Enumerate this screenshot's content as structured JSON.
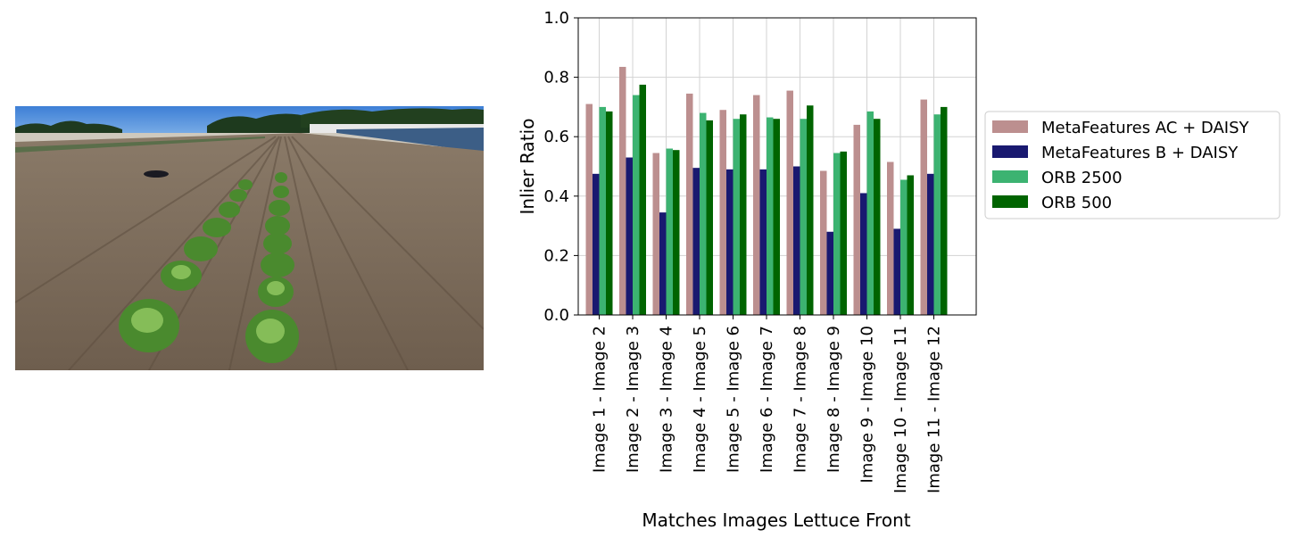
{
  "photo": {
    "alt": "Lettuce field"
  },
  "chart_data": {
    "type": "bar",
    "xlabel": "Matches Images Lettuce Front",
    "ylabel": "Inlier Ratio",
    "ylim": [
      0,
      1.0
    ],
    "yticks": [
      "0.0",
      "0.2",
      "0.4",
      "0.6",
      "0.8",
      "1.0"
    ],
    "grid": true,
    "legend_position": "outside-right",
    "categories": [
      "Image 1 - Image 2",
      "Image 2 - Image 3",
      "Image 3 - Image 4",
      "Image 4 - Image 5",
      "Image 5 - Image 6",
      "Image 6 - Image 7",
      "Image 7 - Image 8",
      "Image 8 - Image 9",
      "Image 9 - Image 10",
      "Image 10 - Image 11",
      "Image 11 - Image 12"
    ],
    "series": [
      {
        "name": "MetaFeatures AC + DAISY",
        "color": "#bc8f8f",
        "values": [
          0.71,
          0.835,
          0.545,
          0.745,
          0.69,
          0.74,
          0.755,
          0.485,
          0.64,
          0.515,
          0.725
        ]
      },
      {
        "name": "MetaFeatures B + DAISY",
        "color": "#191970",
        "values": [
          0.475,
          0.53,
          0.345,
          0.495,
          0.49,
          0.49,
          0.5,
          0.28,
          0.41,
          0.29,
          0.475
        ]
      },
      {
        "name": "ORB 2500",
        "color": "#3cb371",
        "values": [
          0.7,
          0.74,
          0.56,
          0.68,
          0.66,
          0.665,
          0.66,
          0.545,
          0.685,
          0.455,
          0.675
        ]
      },
      {
        "name": "ORB 500",
        "color": "#006400",
        "values": [
          0.685,
          0.775,
          0.555,
          0.655,
          0.675,
          0.66,
          0.705,
          0.55,
          0.66,
          0.47,
          0.7
        ]
      }
    ]
  }
}
